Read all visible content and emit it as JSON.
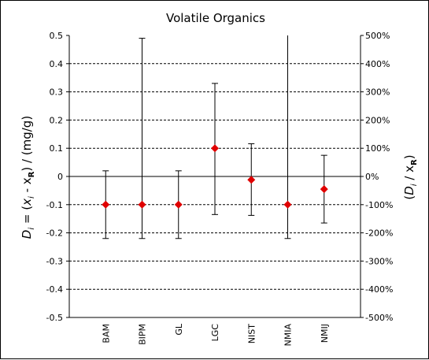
{
  "chart_data": {
    "type": "scatter",
    "title": "Volatile Organics",
    "ylabel_left": {
      "sym": "D",
      "sub": "i",
      "eq": " = (",
      "x": "x",
      "xsub": "i",
      "mid": " - x",
      "rsub": "R",
      "tail": ") / (mg/g)"
    },
    "ylabel_right": {
      "open": "(",
      "sym": "D",
      "sub": "i",
      "mid": " / x",
      "rsub": "R",
      "close": ")"
    },
    "ylim": [
      -0.5,
      0.5
    ],
    "y_ticks": [
      0.5,
      0.4,
      0.3,
      0.2,
      0.1,
      0,
      -0.1,
      -0.2,
      -0.3,
      -0.4,
      -0.5
    ],
    "y_tick_labels": [
      "0.5",
      "0.4",
      "0.3",
      "0.2",
      "0.1",
      "0",
      "-0.1",
      "-0.2",
      "-0.3",
      "-0.4",
      "-0.5"
    ],
    "y2_tick_labels": [
      "500%",
      "400%",
      "300%",
      "200%",
      "100%",
      "0%",
      "-100%",
      "-200%",
      "-300%",
      "-400%",
      "-500%"
    ],
    "grid": "horizontal dashed",
    "categories": [
      "BAM",
      "BIPM",
      "GL",
      "LGC",
      "NIST",
      "NMIA",
      "NMIJ"
    ],
    "values": [
      -0.1,
      -0.1,
      -0.1,
      0.1,
      -0.012,
      -0.1,
      -0.045
    ],
    "error_low": [
      -0.22,
      -0.22,
      -0.22,
      -0.135,
      -0.138,
      -0.22,
      -0.165
    ],
    "error_high": [
      0.02,
      0.49,
      0.02,
      0.33,
      0.116,
      0.5,
      0.075
    ],
    "marker_color": "#e00000"
  }
}
